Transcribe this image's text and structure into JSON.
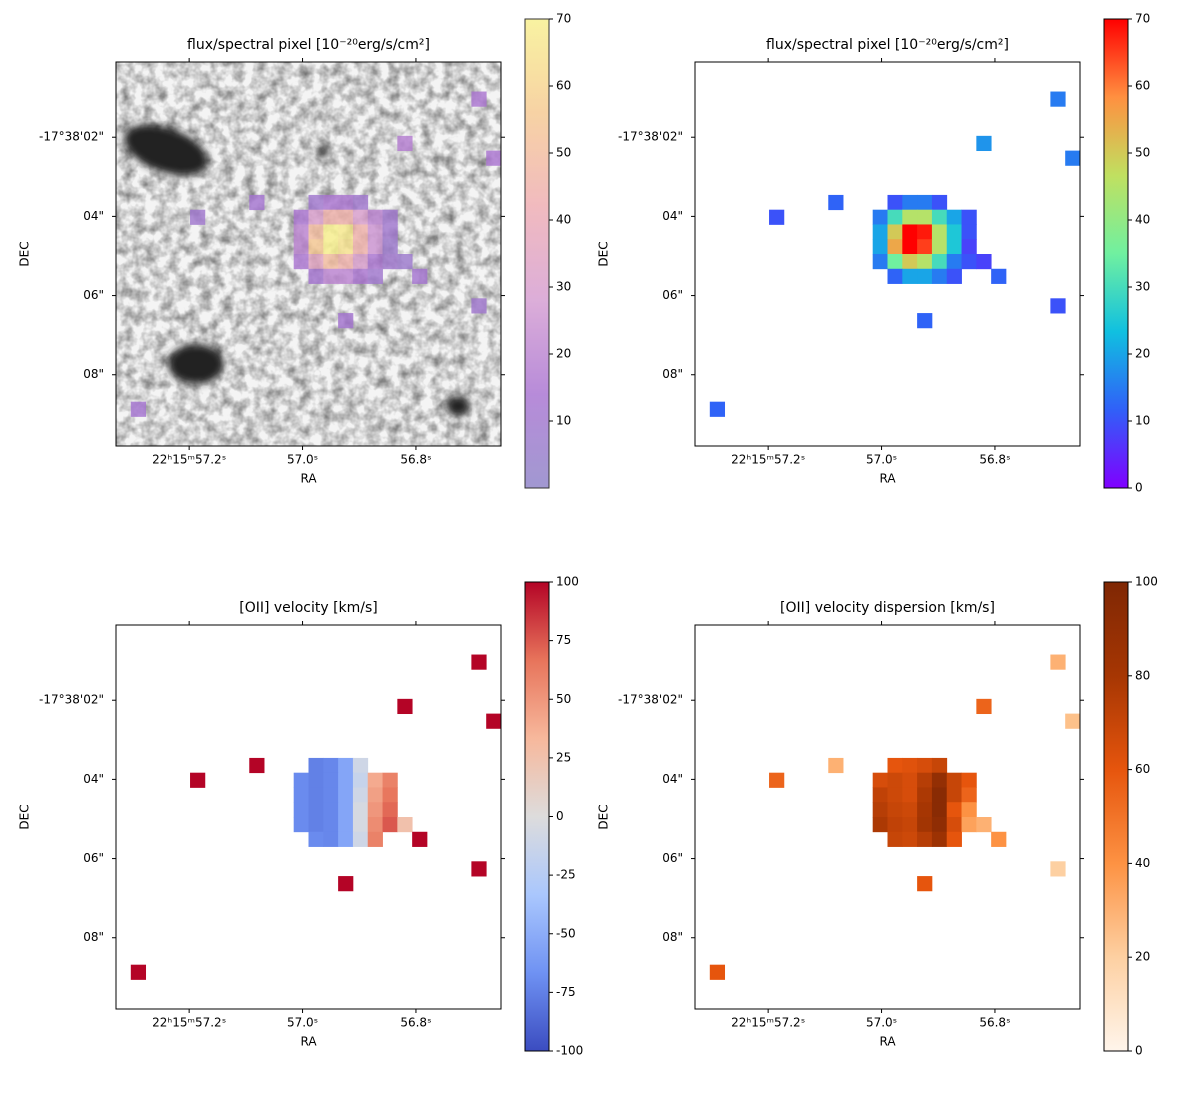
{
  "chart_data": [
    {
      "type": "heatmap",
      "title": "flux/spectral pixel [10⁻²⁰erg/s/cm²]",
      "xlabel": "RA",
      "ylabel": "DEC",
      "xlim": [
        57.329,
        56.65
      ],
      "ylim": [
        9.8,
        0.1
      ],
      "xticks": [
        {
          "value": 57.2,
          "label": "22ʰ15ᵐ57.2ˢ"
        },
        {
          "value": 57.0,
          "label": "57.0ˢ"
        },
        {
          "value": 56.8,
          "label": "56.8ˢ"
        }
      ],
      "yticks": [
        {
          "value": 2,
          "label": "-17°38'02\""
        },
        {
          "value": 4,
          "label": "04\""
        },
        {
          "value": 6,
          "label": "06\""
        },
        {
          "value": 8,
          "label": "08\""
        }
      ],
      "x": [
        13,
        14,
        15,
        16,
        12,
        13,
        14,
        15,
        16,
        17,
        18,
        12,
        13,
        14,
        15,
        16,
        17,
        18,
        12,
        13,
        14,
        15,
        16,
        17,
        18,
        12,
        13,
        14,
        15,
        16,
        17,
        18,
        19,
        13,
        14,
        15,
        16,
        17,
        5,
        9,
        19,
        24,
        25,
        20,
        24,
        15,
        1
      ],
      "y": [
        9,
        9,
        9,
        9,
        10,
        10,
        10,
        10,
        10,
        10,
        10,
        11,
        11,
        11,
        11,
        11,
        11,
        11,
        12,
        12,
        12,
        12,
        12,
        12,
        12,
        13,
        13,
        13,
        13,
        13,
        13,
        13,
        13,
        14,
        14,
        14,
        14,
        14,
        10,
        9,
        5,
        2,
        6,
        14,
        16,
        17,
        23
      ],
      "values": [
        10,
        15,
        15,
        10,
        15,
        30,
        45,
        45,
        30,
        20,
        10,
        20,
        50,
        70,
        68,
        45,
        25,
        10,
        20,
        55,
        70,
        65,
        45,
        25,
        8,
        15,
        35,
        50,
        45,
        30,
        15,
        10,
        8,
        12,
        20,
        20,
        15,
        10,
        10,
        12,
        18,
        15,
        15,
        12,
        10,
        12,
        12
      ],
      "clim": [
        0,
        70
      ],
      "cticks": [
        10,
        20,
        30,
        40,
        50,
        60,
        70
      ],
      "colormap": [
        "#8a7fc6",
        "#a66fd0",
        "#d49ad0",
        "#eeaab0",
        "#f6c88e",
        "#f8f08a"
      ],
      "overlay": true,
      "overlay_alpha": 0.8
    },
    {
      "type": "heatmap",
      "title": "flux/spectral pixel [10⁻²⁰erg/s/cm²]",
      "xlabel": "RA",
      "ylabel": "DEC",
      "xlim": [
        57.329,
        56.65
      ],
      "ylim": [
        9.8,
        0.1
      ],
      "xticks": [
        {
          "value": 57.2,
          "label": "22ʰ15ᵐ57.2ˢ"
        },
        {
          "value": 57.0,
          "label": "57.0ˢ"
        },
        {
          "value": 56.8,
          "label": "56.8ˢ"
        }
      ],
      "yticks": [
        {
          "value": 2,
          "label": "-17°38'02\""
        },
        {
          "value": 4,
          "label": "04\""
        },
        {
          "value": 6,
          "label": "06\""
        },
        {
          "value": 8,
          "label": "08\""
        }
      ],
      "x": [
        13,
        14,
        15,
        16,
        12,
        13,
        14,
        15,
        16,
        17,
        18,
        12,
        13,
        14,
        15,
        16,
        17,
        18,
        12,
        13,
        14,
        15,
        16,
        17,
        18,
        12,
        13,
        14,
        15,
        16,
        17,
        18,
        19,
        13,
        14,
        15,
        16,
        17,
        5,
        9,
        19,
        24,
        25,
        20,
        24,
        15,
        1
      ],
      "y": [
        9,
        9,
        9,
        9,
        10,
        10,
        10,
        10,
        10,
        10,
        10,
        11,
        11,
        11,
        11,
        11,
        11,
        11,
        12,
        12,
        12,
        12,
        12,
        12,
        12,
        13,
        13,
        13,
        13,
        13,
        13,
        13,
        13,
        14,
        14,
        14,
        14,
        14,
        10,
        9,
        5,
        2,
        6,
        14,
        16,
        17,
        23
      ],
      "values": [
        10,
        15,
        15,
        10,
        15,
        30,
        45,
        45,
        30,
        20,
        10,
        20,
        50,
        70,
        68,
        45,
        25,
        10,
        20,
        55,
        70,
        65,
        45,
        25,
        8,
        15,
        35,
        50,
        45,
        30,
        15,
        10,
        8,
        12,
        20,
        20,
        15,
        10,
        10,
        12,
        18,
        15,
        15,
        12,
        10,
        12,
        12
      ],
      "clim": [
        0,
        70
      ],
      "cticks": [
        0,
        10,
        20,
        30,
        40,
        50,
        60,
        70
      ],
      "colormap": [
        "#8000ff",
        "#3060f8",
        "#10c0e0",
        "#70f0a0",
        "#c0e060",
        "#ff9040",
        "#ff0000"
      ]
    },
    {
      "type": "heatmap",
      "title": "[OII] velocity [km/s]",
      "xlabel": "RA",
      "ylabel": "DEC",
      "xlim": [
        57.329,
        56.65
      ],
      "ylim": [
        9.8,
        0.1
      ],
      "xticks": [
        {
          "value": 57.2,
          "label": "22ʰ15ᵐ57.2ˢ"
        },
        {
          "value": 57.0,
          "label": "57.0ˢ"
        },
        {
          "value": 56.8,
          "label": "56.8ˢ"
        }
      ],
      "yticks": [
        {
          "value": 2,
          "label": "-17°38'02\""
        },
        {
          "value": 4,
          "label": "04\""
        },
        {
          "value": 6,
          "label": "06\""
        },
        {
          "value": 8,
          "label": "08\""
        }
      ],
      "x": [
        13,
        14,
        15,
        16,
        12,
        13,
        14,
        15,
        16,
        17,
        18,
        12,
        13,
        14,
        15,
        16,
        17,
        18,
        12,
        13,
        14,
        15,
        16,
        17,
        18,
        12,
        13,
        14,
        15,
        16,
        17,
        18,
        19,
        13,
        14,
        15,
        16,
        17,
        5,
        9,
        19,
        24,
        25,
        20,
        24,
        15,
        1
      ],
      "y": [
        9,
        9,
        9,
        9,
        10,
        10,
        10,
        10,
        10,
        10,
        10,
        11,
        11,
        11,
        11,
        11,
        11,
        11,
        12,
        12,
        12,
        12,
        12,
        12,
        12,
        13,
        13,
        13,
        13,
        13,
        13,
        13,
        13,
        14,
        14,
        14,
        14,
        14,
        10,
        9,
        5,
        2,
        6,
        14,
        16,
        17,
        23
      ],
      "values": [
        -75,
        -72,
        -55,
        -10,
        -70,
        -75,
        -72,
        -55,
        -15,
        40,
        60,
        -70,
        -75,
        -72,
        -55,
        -10,
        45,
        65,
        -70,
        -75,
        -72,
        -55,
        -5,
        50,
        70,
        -70,
        -75,
        -72,
        -55,
        -5,
        55,
        75,
        25,
        -70,
        -72,
        -55,
        -10,
        60,
        100,
        100,
        100,
        100,
        100,
        100,
        100,
        100,
        100
      ],
      "clim": [
        -100,
        100
      ],
      "cticks": [
        -100,
        -75,
        -50,
        -25,
        0,
        25,
        50,
        75,
        100
      ],
      "colormap": [
        "#3b4cc0",
        "#6f92f3",
        "#aac7fd",
        "#dddcdc",
        "#f7b89c",
        "#e7745b",
        "#b40426"
      ]
    },
    {
      "type": "heatmap",
      "title": "[OII] velocity dispersion [km/s]",
      "xlabel": "RA",
      "ylabel": "DEC",
      "xlim": [
        57.329,
        56.65
      ],
      "ylim": [
        9.8,
        0.1
      ],
      "xticks": [
        {
          "value": 57.2,
          "label": "22ʰ15ᵐ57.2ˢ"
        },
        {
          "value": 57.0,
          "label": "57.0ˢ"
        },
        {
          "value": 56.8,
          "label": "56.8ˢ"
        }
      ],
      "yticks": [
        {
          "value": 2,
          "label": "-17°38'02\""
        },
        {
          "value": 4,
          "label": "04\""
        },
        {
          "value": 6,
          "label": "06\""
        },
        {
          "value": 8,
          "label": "08\""
        }
      ],
      "x": [
        13,
        14,
        15,
        16,
        12,
        13,
        14,
        15,
        16,
        17,
        18,
        12,
        13,
        14,
        15,
        16,
        17,
        18,
        12,
        13,
        14,
        15,
        16,
        17,
        18,
        12,
        13,
        14,
        15,
        16,
        17,
        18,
        19,
        13,
        14,
        15,
        16,
        17,
        5,
        9,
        19,
        24,
        25,
        20,
        24,
        15,
        1
      ],
      "y": [
        9,
        9,
        9,
        9,
        10,
        10,
        10,
        10,
        10,
        10,
        10,
        11,
        11,
        11,
        11,
        11,
        11,
        11,
        12,
        12,
        12,
        12,
        12,
        12,
        12,
        13,
        13,
        13,
        13,
        13,
        13,
        13,
        13,
        14,
        14,
        14,
        14,
        14,
        10,
        9,
        5,
        2,
        6,
        14,
        16,
        17,
        23
      ],
      "values": [
        60,
        62,
        65,
        70,
        65,
        68,
        65,
        75,
        90,
        70,
        60,
        72,
        68,
        65,
        78,
        95,
        70,
        55,
        75,
        70,
        68,
        80,
        95,
        60,
        40,
        78,
        72,
        70,
        82,
        92,
        65,
        35,
        30,
        70,
        68,
        75,
        85,
        60,
        55,
        30,
        55,
        30,
        25,
        40,
        20,
        60,
        60
      ],
      "clim": [
        0,
        100
      ],
      "cticks": [
        0,
        20,
        40,
        60,
        80,
        100
      ],
      "colormap": [
        "#fff5eb",
        "#fdd0a2",
        "#fd9243",
        "#e6550d",
        "#a63603",
        "#7f2704"
      ]
    }
  ]
}
